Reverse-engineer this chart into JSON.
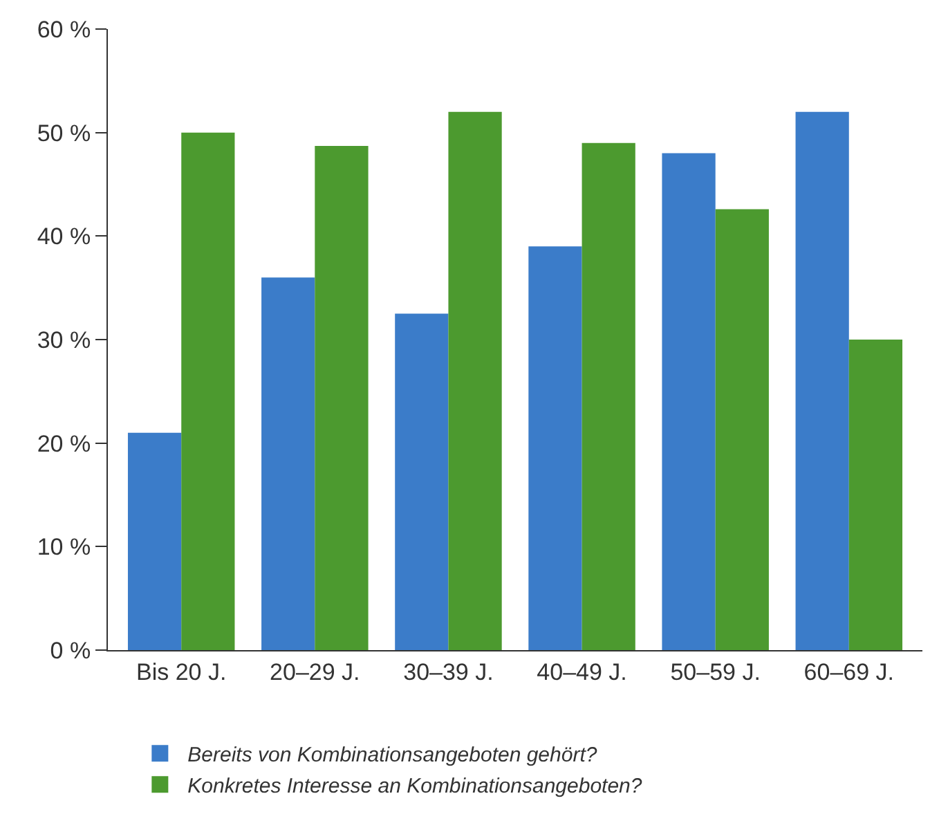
{
  "chart_data": {
    "type": "bar",
    "categories": [
      "Bis 20 J.",
      "20–29 J.",
      "30–39 J.",
      "40–49 J.",
      "50–59 J.",
      "60–69 J."
    ],
    "series": [
      {
        "name": "Bereits von Kombinationsangeboten gehört?",
        "color": "#3b7cc9",
        "values": [
          21,
          36,
          32.5,
          39,
          48,
          52
        ]
      },
      {
        "name": "Konkretes Interesse an Kombinationsangeboten?",
        "color": "#4c9a2f",
        "values": [
          50,
          48.7,
          52,
          49,
          42.6,
          30
        ]
      }
    ],
    "ylim": [
      0,
      60
    ],
    "yticks": [
      {
        "value": 0,
        "label": "0 %"
      },
      {
        "value": 10,
        "label": "10 %"
      },
      {
        "value": 20,
        "label": "20 %"
      },
      {
        "value": 30,
        "label": "30 %"
      },
      {
        "value": 40,
        "label": "40 %"
      },
      {
        "value": 50,
        "label": "50 %"
      },
      {
        "value": 60,
        "label": "60 %"
      }
    ],
    "legend": "bottom left"
  }
}
